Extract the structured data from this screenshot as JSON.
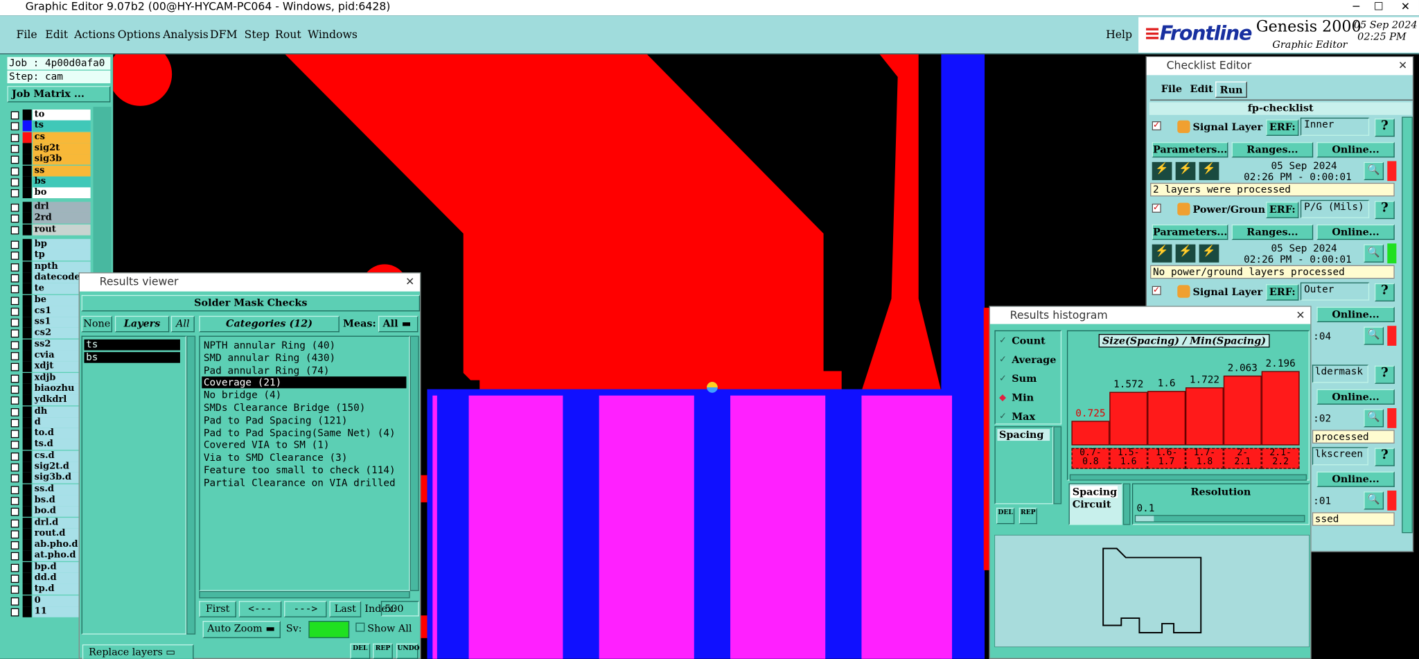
{
  "window": {
    "title": "Graphic Editor 9.07b2 (00@HY-HYCAM-PC064 - Windows, pid:6428)"
  },
  "menu": {
    "items": [
      "File",
      "Edit",
      "Actions",
      "Options",
      "Analysis",
      "DFM",
      "Step",
      "Rout",
      "Windows"
    ],
    "help": "Help"
  },
  "brand": {
    "logo": "Frontline",
    "product": "Genesis 2000",
    "subtitle": "Graphic Editor",
    "date": "05 Sep 2024",
    "time": "02:25 PM"
  },
  "job": {
    "job": "Job : 4p00d0afa0",
    "step": "Step: cam",
    "matrix": "Job Matrix ..."
  },
  "layers": {
    "groups": [
      [
        {
          "name": "to",
          "color": "#ffffff",
          "display": "#000000"
        },
        {
          "name": "ts",
          "color": "#40c8b8",
          "display": "#1010ff"
        },
        {
          "name": "cs",
          "color": "#f8b838",
          "display": "#ff1010"
        },
        {
          "name": "sig2t",
          "color": "#f8b838",
          "display": "#000000"
        },
        {
          "name": "sig3b",
          "color": "#f8b838",
          "display": "#000000"
        },
        {
          "name": "ss",
          "color": "#f8b838",
          "display": "#000000"
        },
        {
          "name": "bs",
          "color": "#40c8b8",
          "display": "#000000"
        },
        {
          "name": "bo",
          "color": "#ffffff",
          "display": "#000000"
        }
      ],
      [
        {
          "name": "drl",
          "color": "#a0b4bc",
          "display": "#000000"
        },
        {
          "name": "2rd",
          "color": "#a0b4bc",
          "display": "#000000"
        },
        {
          "name": "rout",
          "color": "#c8d4d0",
          "display": "#000000"
        }
      ],
      [
        {
          "name": "bp",
          "color": "#a8e0e8",
          "display": "#000000"
        },
        {
          "name": "tp",
          "color": "#a8e0e8",
          "display": "#000000"
        },
        {
          "name": "npth",
          "color": "#a8e0e8",
          "display": "#000000"
        },
        {
          "name": "datecode-",
          "color": "#a8e0e8",
          "display": "#000000"
        },
        {
          "name": "te",
          "color": "#a8e0e8",
          "display": "#000000"
        },
        {
          "name": "be",
          "color": "#a8e0e8",
          "display": "#000000"
        },
        {
          "name": "cs1",
          "color": "#a8e0e8",
          "display": "#000000"
        },
        {
          "name": "ss1",
          "color": "#a8e0e8",
          "display": "#000000"
        },
        {
          "name": "cs2",
          "color": "#a8e0e8",
          "display": "#000000"
        },
        {
          "name": "ss2",
          "color": "#a8e0e8",
          "display": "#000000"
        },
        {
          "name": "cvia",
          "color": "#a8e0e8",
          "display": "#000000"
        },
        {
          "name": "xdjt",
          "color": "#a8e0e8",
          "display": "#000000"
        },
        {
          "name": "xdjb",
          "color": "#a8e0e8",
          "display": "#000000"
        },
        {
          "name": "biaozhu",
          "color": "#a8e0e8",
          "display": "#000000"
        },
        {
          "name": "ydkdrl",
          "color": "#a8e0e8",
          "display": "#000000"
        },
        {
          "name": "dh",
          "color": "#a8e0e8",
          "display": "#000000"
        },
        {
          "name": "d",
          "color": "#a8e0e8",
          "display": "#000000"
        },
        {
          "name": "to.d",
          "color": "#a8e0e8",
          "display": "#000000"
        },
        {
          "name": "ts.d",
          "color": "#a8e0e8",
          "display": "#000000"
        },
        {
          "name": "cs.d",
          "color": "#a8e0e8",
          "display": "#000000"
        },
        {
          "name": "sig2t.d",
          "color": "#a8e0e8",
          "display": "#000000"
        },
        {
          "name": "sig3b.d",
          "color": "#a8e0e8",
          "display": "#000000"
        },
        {
          "name": "ss.d",
          "color": "#a8e0e8",
          "display": "#000000"
        },
        {
          "name": "bs.d",
          "color": "#a8e0e8",
          "display": "#000000"
        },
        {
          "name": "bo.d",
          "color": "#a8e0e8",
          "display": "#000000"
        },
        {
          "name": "drl.d",
          "color": "#a8e0e8",
          "display": "#000000"
        },
        {
          "name": "rout.d",
          "color": "#a8e0e8",
          "display": "#000000"
        },
        {
          "name": "ab.pho.d",
          "color": "#a8e0e8",
          "display": "#000000"
        },
        {
          "name": "at.pho.d",
          "color": "#a8e0e8",
          "display": "#000000"
        },
        {
          "name": "bp.d",
          "color": "#a8e0e8",
          "display": "#000000"
        },
        {
          "name": "dd.d",
          "color": "#a8e0e8",
          "display": "#000000"
        },
        {
          "name": "tp.d",
          "color": "#a8e0e8",
          "display": "#000000"
        },
        {
          "name": "0",
          "color": "#a8e0e8",
          "display": "#000000"
        },
        {
          "name": "11",
          "color": "#a8e0e8",
          "display": "#000000"
        }
      ]
    ]
  },
  "results_viewer": {
    "title": "Results viewer",
    "header": "Solder Mask Checks",
    "none": "None",
    "layers_button": "Layers",
    "all": "All",
    "layers": [
      "ts",
      "bs"
    ],
    "categories_button": "Categories (12)",
    "meas": "Meas:",
    "meas_value": "All",
    "categories": [
      "NPTH annular Ring (40)",
      "SMD annular Ring (430)",
      "Pad annular Ring (74)",
      "Coverage (21)",
      "No bridge (4)",
      "SMDs Clearance Bridge (150)",
      "Pad to Pad Spacing (121)",
      "Pad to Pad Spacing(Same Net) (4)",
      "Covered VIA to SM (1)",
      "Via to SMD Clearance (3)",
      "Feature too small to check (114)",
      "Partial Clearance on VIA drilled"
    ],
    "selected": 3,
    "first": "First",
    "prev": "<---",
    "next": "--->",
    "last": "Last",
    "index_label": "Index:",
    "index": "500",
    "auto_zoom": "Auto Zoom",
    "sv": "Sv:",
    "show_all": "Show All",
    "replace": "Replace layers",
    "del": "DEL",
    "rep": "REP",
    "undo": "UNDO"
  },
  "histogram": {
    "title": "Results histogram",
    "options": [
      "Count",
      "Average",
      "Sum",
      "Min",
      "Max"
    ],
    "selected": 3,
    "measures": [
      "Spacing"
    ],
    "heading": "Size(Spacing) / Min(Spacing)",
    "bars": [
      {
        "value": 0.725,
        "range": [
          "0.7-",
          "0.8"
        ]
      },
      {
        "value": 1.572,
        "range": [
          "1.5-",
          "1.6"
        ]
      },
      {
        "value": 1.6,
        "range": [
          "1.6-",
          "1.7"
        ]
      },
      {
        "value": 1.722,
        "range": [
          "1.7-",
          "1.8"
        ]
      },
      {
        "value": 2.063,
        "range": [
          "2-",
          "2.1"
        ]
      },
      {
        "value": 2.196,
        "range": [
          "2.1-",
          "2.2"
        ]
      }
    ],
    "list": [
      "Spacing",
      "Circuit"
    ],
    "resolution_label": "Resolution",
    "resolution": "0.1",
    "del": "DEL",
    "rep": "REP"
  },
  "checklist": {
    "title": "Checklist Editor",
    "menu": [
      "File",
      "Edit",
      "Run"
    ],
    "name": "fp-checklist",
    "items": [
      {
        "name": "Signal Layer Ch",
        "erf_label": "ERF:",
        "erf": "Inner",
        "params": "Parameters...",
        "ranges": "Ranges...",
        "online": "Online...",
        "date": "05 Sep 2024",
        "time": "02:26 PM - 0:00:01",
        "message": "2 layers were processed",
        "status": "#ff2020"
      },
      {
        "name": "Power/Ground C",
        "erf_label": "ERF:",
        "erf": "P/G (Mils)",
        "params": "Parameters...",
        "ranges": "Ranges...",
        "online": "Online...",
        "date": "05 Sep 2024",
        "time": "02:26 PM - 0:00:01",
        "message": "No power/ground layers processed",
        "status": "#20e020"
      },
      {
        "name": "Signal Layer Ch",
        "erf_label": "ERF:",
        "erf": "Outer",
        "online": "Online...",
        "time": ":04",
        "status": "#ff2020"
      },
      {
        "erf": "ldermask",
        "online": "Online...",
        "time": ":02",
        "message": "processed",
        "status": "#ff2020"
      },
      {
        "erf": "lkscreen",
        "online": "Online...",
        "time": ":01",
        "message": "ssed",
        "status": "#ff2020"
      }
    ]
  }
}
